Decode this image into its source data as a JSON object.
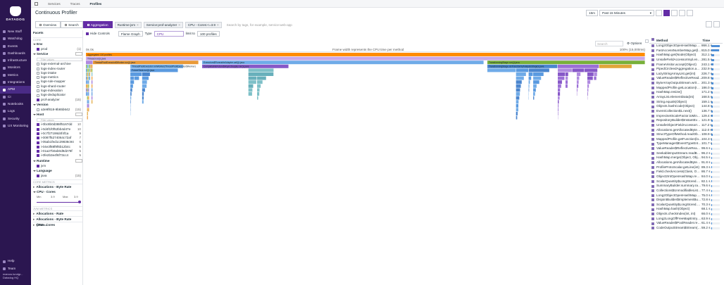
{
  "nav": {
    "brand": "DATADOG",
    "items": [
      "New Stuff",
      "Watchdog",
      "Events",
      "Dashboards",
      "Infrastructure",
      "Monitors",
      "Metrics",
      "Integrations",
      "APM",
      "CI",
      "Notebooks",
      "Logs",
      "Security",
      "UX Monitoring"
    ],
    "active_index": 8,
    "bottom_items": [
      "Help",
      "Team"
    ],
    "user_name": "marcus.lundgr...",
    "user_org": "Datadog HQ"
  },
  "topnav": {
    "tabs": [
      "Services",
      "Traces",
      "Profiles"
    ],
    "active": "Profiles"
  },
  "page_title": "Continuous Profiler",
  "timeframe": {
    "chip": "15m",
    "label": "Past 15 Minutes"
  },
  "views": {
    "tabs": [
      "Overview",
      "Search",
      "Aggregation"
    ],
    "active": "Aggregation"
  },
  "query": {
    "chips": [
      "Runtime:jvm",
      "Service:prof-analyzer",
      "CPU - Cores:<=3.9"
    ],
    "placeholder": "Search by tags, for example, service:web-app"
  },
  "flame_tools": {
    "hide_controls": "Hide Controls",
    "view_select": "Flame Graph",
    "type_label": "Type",
    "type_value": "CPU",
    "limit_label": "limit to",
    "limit_value": "100 profiles",
    "search_placeholder": "Search",
    "options_label": "Options"
  },
  "flame_header": {
    "left": "0s 0s",
    "center": "Frame width represents the CPU time per method",
    "right": "100% (15,000ms)"
  },
  "flame_labels": [
    "Aggregated 100 profiles",
    "Thread.run()Ljava",
    "ThreadPoolExecutor$Worker.run()Ljava",
    "ThreadPoolExecutor.runWorker(ThreadPoolExecutor$Worker)",
    "FutureTask.run()Ljava",
    "Executors$RunnableAdapter.call()Ljava",
    "CompletableFuture$AsyncSupply.run()Ljava",
    "TransformingStage.run()Ljava",
    "TransformingStage.doTransform(AnalysisStage)Ljava",
    "AnalysisStage.transform(AnalyzerWorkload)Ljava",
    "AnalysisPipeline.process(Object)Ljava",
    "ReferencePipeline$3$1.accept(Object)Ljava",
    "SpliteratorArraySpliterator.forEachRemaining",
    "ValueReader.read(ByteBuffer)Ljava",
    "ProfileParser.parse(InputStream)Ljava",
    "ChunkLoader.load(Path)Ljava",
    "TypeManager.resolve(Class)Ljava",
    "Heap.computeMerge(Object)Ljava",
    "ScalarQuantity.apply(Long)Ljava",
    "ObjectArrayDeque.add(Object)Ljava",
    "MappedProfile.get(Location)Ljava",
    "ChunkLoaderV1.readEvent()Ljava",
    "Allocations.getAllocatedBytes()",
    "MergeStrategy.combine(Object)Ljava"
  ],
  "facets": {
    "title": "Facets",
    "core_label": "CORE",
    "env": {
      "name": "Env",
      "values": [
        {
          "label": "prod",
          "count": "(1)",
          "checked": true
        }
      ]
    },
    "service": {
      "name": "Service",
      "filter_placeholder": "Filter values",
      "values": [
        {
          "label": "logs-external-archive",
          "count": "",
          "checked": false
        },
        {
          "label": "logs-index-router",
          "count": "",
          "checked": false
        },
        {
          "label": "logs-intake",
          "count": "",
          "checked": false
        },
        {
          "label": "logs-metrics",
          "count": "",
          "checked": false
        },
        {
          "label": "logs-rule-mapper",
          "count": "",
          "checked": false
        },
        {
          "label": "logs-shard-router",
          "count": "",
          "checked": false
        },
        {
          "label": "logs-indexation",
          "count": "",
          "checked": false
        },
        {
          "label": "logs-deduplicator",
          "count": "",
          "checked": false
        },
        {
          "label": "prof-analyzer",
          "count": "(15)",
          "checked": true
        }
      ]
    },
    "version": {
      "name": "Version",
      "values": [
        {
          "label": "a3e9f818-9b65b642",
          "count": "(15)",
          "checked": false
        }
      ]
    },
    "host": {
      "name": "Host",
      "filter_placeholder": "Filter values",
      "values": [
        {
          "label": "i-0bc8b0d388f5167dd",
          "count": "10",
          "checked": true
        },
        {
          "label": "i-0d4f1f0f52bb4d47e",
          "count": "10",
          "checked": true
        },
        {
          "label": "i-0c7f27198d4f4f1a",
          "count": "9",
          "checked": true
        },
        {
          "label": "i-0087f5274064c72af",
          "count": "7",
          "checked": true
        },
        {
          "label": "i-05ab1fed1c29836c94",
          "count": "6",
          "checked": true
        },
        {
          "label": "i-04e3f88f9f6b12b4c",
          "count": "5",
          "checked": true
        },
        {
          "label": "i-01a27b0ab0d9d278f",
          "count": "5",
          "checked": true
        },
        {
          "label": "i-0fe2b3e4f6f73cc4",
          "count": "5",
          "checked": true
        }
      ]
    },
    "runtime": {
      "name": "Runtime",
      "values": [
        {
          "label": "jvm",
          "count": "",
          "checked": true
        }
      ]
    },
    "language": {
      "name": "Language",
      "values": [
        {
          "label": "java",
          "count": "(15)",
          "checked": true
        }
      ]
    },
    "core_metrics_label": "CORE METRICS",
    "metric_facets": [
      "Allocations - Byte Rate",
      "CPU - Cores"
    ],
    "cpu_range": {
      "min_label": "Min",
      "min_value": "3.9",
      "max_label": "Max",
      "max_value": "3.9"
    },
    "jvm_metrics_label": "JVM METRICS",
    "jvm_facets": [
      "Allocations - Rate",
      "Allocations - Byte Rate (Sam...",
      "CPU - Cores"
    ]
  },
  "method_table": {
    "col_method": "Method",
    "col_time": "Time",
    "rows": [
      {
        "method": "Long2ObjectOpenHashMap.ge...",
        "time": "866.1 s",
        "pct": 1.0
      },
      {
        "method": "FastAccessNumberMap.get(l...",
        "time": "815.0 s",
        "pct": 0.94
      },
      {
        "method": "HashMap.get(Node(Object)",
        "time": "312.1 s",
        "pct": 0.36
      },
      {
        "method": "UnsafeFieldAccessorImpl.ens...",
        "time": "281.5 s",
        "pct": 0.33
      },
      {
        "method": "FrameVisitor.accept(Object)",
        "time": "243.1 s",
        "pct": 0.28
      },
      {
        "method": "PipedCircleedAggregation.add...",
        "time": "232.9 s",
        "pct": 0.27
      },
      {
        "method": "LazyStringArrayList.get(int)",
        "time": "226.7 s",
        "pct": 0.26
      },
      {
        "method": "ValueReader$ReflectiveRead...",
        "time": "209.8 s",
        "pct": 0.24
      },
      {
        "method": "ByteArrayOutputStream.write(...",
        "time": "201.3 s",
        "pct": 0.23
      },
      {
        "method": "MappedProfile.getLocation(Ion...",
        "time": "186.0 s",
        "pct": 0.21
      },
      {
        "method": "HashMap.resize()",
        "time": "171.2 s",
        "pct": 0.2
      },
      {
        "method": "ArrayList.elementData(int)",
        "time": "168.5 s",
        "pct": 0.19
      },
      {
        "method": "String.equals(Object)",
        "time": "159.1 s",
        "pct": 0.18
      },
      {
        "method": "Objects.hashCode(Object)",
        "time": "144.8 s",
        "pct": 0.17
      },
      {
        "method": "EventCollection$1.next()",
        "time": "136.7 s",
        "pct": 0.16
      },
      {
        "method": "ImprecisetScaleFactor.toMin...",
        "time": "129.4 s",
        "pct": 0.15
      },
      {
        "method": "RepositoryBuilder$InstantEvn...",
        "time": "121.9 s",
        "pct": 0.14
      },
      {
        "method": "UnsafeObjectFieldAccessorIm...",
        "time": "117.2 s",
        "pct": 0.14
      },
      {
        "method": "Allocations.getAllocatedBytesB...",
        "time": "112.0 s",
        "pct": 0.13
      },
      {
        "method": "StructTypeOfMethod.readObje...",
        "time": "108.9 s",
        "pct": 0.13
      },
      {
        "method": "MappedProfile.getFunction(lo...",
        "time": "104.3 s",
        "pct": 0.12
      },
      {
        "method": "TypeManager$EventTypeEntry...",
        "time": "101.7 s",
        "pct": 0.12
      },
      {
        "method": "ValueReader$ReflectiveReade...",
        "time": "99.6 s",
        "pct": 0.11
      },
      {
        "method": "SeekableInputStream.readByte()",
        "time": "96.2 s",
        "pct": 0.11
      },
      {
        "method": "HashMap.merge(Object, Objec...",
        "time": "94.5 s",
        "pct": 0.11
      },
      {
        "method": "Allocations.getAllocatedBytesBy...",
        "time": "91.8 s",
        "pct": 0.11
      },
      {
        "method": "ProfileProtoScalar.getLine(int)",
        "time": "89.3 s",
        "pct": 0.1
      },
      {
        "method": "Field.checkAccess(Class, Object)",
        "time": "86.7 s",
        "pct": 0.1
      },
      {
        "method": "Object2IntOpenHashMap.rehas...",
        "time": "84.0 s",
        "pct": 0.1
      },
      {
        "method": "ScalarQuantity$LongStored.co...",
        "time": "82.1 s",
        "pct": 0.09
      },
      {
        "method": "SummaryBuilder.summary.rank()",
        "time": "79.6 s",
        "pct": 0.09
      },
      {
        "method": "Collections$UnmodifiableList.g...",
        "time": "77.4 s",
        "pct": 0.09
      },
      {
        "method": "Long2ObjectOpenHashMap.rehas...",
        "time": "75.0 s",
        "pct": 0.09
      },
      {
        "method": "DisjointBuilder$ImplementBundl...",
        "time": "72.8 s",
        "pct": 0.08
      },
      {
        "method": "ScalarQuantity$LongStored.ma...",
        "time": "70.3 s",
        "pct": 0.08
      },
      {
        "method": "HashMap.hash(Object)",
        "time": "68.1 s",
        "pct": 0.08
      },
      {
        "method": "Objects.checkIndex(int, int)",
        "time": "66.0 s",
        "pct": 0.08
      },
      {
        "method": "Long2LongOffFreeMapEntry.in...",
        "time": "63.9 s",
        "pct": 0.07
      },
      {
        "method": "ValueReader$PoolReader.read...",
        "time": "61.4 s",
        "pct": 0.07
      },
      {
        "method": "CodeOutputStream$Stream(ba...",
        "time": "59.2 s",
        "pct": 0.07
      }
    ]
  },
  "colors": {
    "nav_bg": "#2b1650",
    "accent": "#632ca6",
    "flame_root": "#7a8aa0"
  }
}
